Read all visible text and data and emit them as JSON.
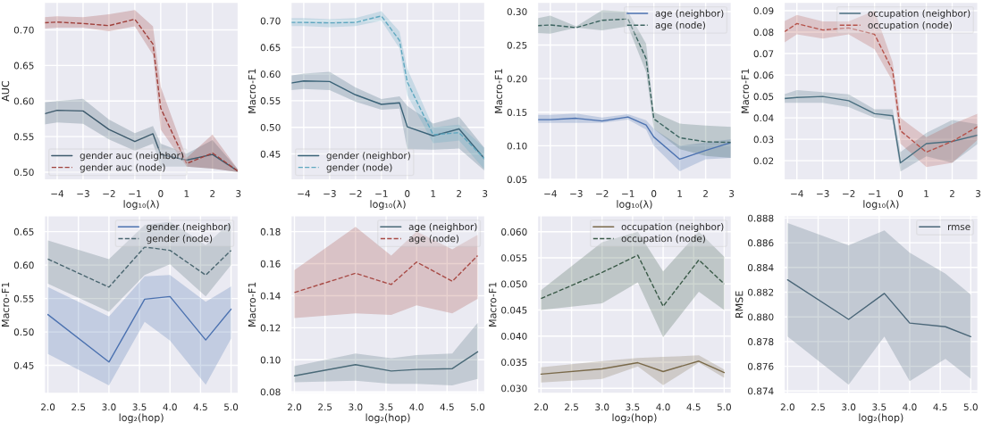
{
  "chart_data": [
    {
      "type": "line",
      "ylabel": "AUC",
      "xlabel": "log₁₀(λ)",
      "x": [
        -4.5,
        -4,
        -3,
        -2,
        -1,
        -0.3,
        0,
        1,
        2,
        3
      ],
      "xlim": [
        -4.5,
        3
      ],
      "xticks": [
        {
          "value": -4,
          "label": "−4"
        },
        {
          "value": -3,
          "label": "−3"
        },
        {
          "value": -2,
          "label": "−2"
        },
        {
          "value": -1,
          "label": "−1"
        },
        0,
        1,
        2,
        3
      ],
      "ylim": [
        0.489,
        0.739
      ],
      "yticks": [
        {
          "value": 0.5,
          "label": "0.50"
        },
        {
          "value": 0.55,
          "label": "0.55"
        },
        {
          "value": 0.6,
          "label": "0.60"
        },
        {
          "value": 0.65,
          "label": "0.65"
        },
        {
          "value": 0.7,
          "label": "0.70"
        }
      ],
      "grid": true,
      "legend": "bottom left",
      "series": [
        {
          "name": "gender auc (neighbor)",
          "color": "#3d5a6c",
          "line_style": "solid",
          "values": [
            0.582,
            0.587,
            0.586,
            0.56,
            0.543,
            0.554,
            0.525,
            0.517,
            0.525,
            0.501
          ],
          "lower": [
            0.567,
            0.57,
            0.568,
            0.546,
            0.53,
            0.54,
            0.508,
            0.508,
            0.505,
            0.5
          ],
          "upper": [
            0.598,
            0.6,
            0.603,
            0.574,
            0.555,
            0.565,
            0.54,
            0.526,
            0.545,
            0.503
          ]
        },
        {
          "name": "gender auc (node)",
          "color": "#a0413c",
          "line_style": "dashed",
          "values": [
            0.71,
            0.711,
            0.709,
            0.706,
            0.715,
            0.68,
            0.59,
            0.512,
            0.527,
            0.501
          ],
          "lower": [
            0.702,
            0.703,
            0.703,
            0.698,
            0.705,
            0.665,
            0.56,
            0.508,
            0.505,
            0.5
          ],
          "upper": [
            0.718,
            0.719,
            0.718,
            0.722,
            0.728,
            0.705,
            0.62,
            0.52,
            0.553,
            0.503
          ]
        }
      ]
    },
    {
      "type": "line",
      "ylabel": "Macro-F1",
      "xlabel": "log₁₀(λ)",
      "x": [
        -4.5,
        -4,
        -3,
        -2,
        -1,
        -0.3,
        0,
        1,
        2,
        3
      ],
      "xlim": [
        -4.5,
        3
      ],
      "xticks": [
        {
          "value": -4,
          "label": "−4"
        },
        {
          "value": -3,
          "label": "−3"
        },
        {
          "value": -2,
          "label": "−2"
        },
        {
          "value": -1,
          "label": "−1"
        },
        0,
        1,
        2,
        3
      ],
      "ylim": [
        0.401,
        0.735
      ],
      "yticks": [
        {
          "value": 0.45,
          "label": "0.45"
        },
        {
          "value": 0.5,
          "label": "0.50"
        },
        {
          "value": 0.55,
          "label": "0.55"
        },
        {
          "value": 0.6,
          "label": "0.60"
        },
        {
          "value": 0.65,
          "label": "0.65"
        },
        {
          "value": 0.7,
          "label": "0.70"
        }
      ],
      "grid": true,
      "legend": "bottom left",
      "series": [
        {
          "name": "gender (neighbor)",
          "color": "#3b6378",
          "line_style": "solid",
          "values": [
            0.583,
            0.587,
            0.586,
            0.561,
            0.543,
            0.546,
            0.501,
            0.484,
            0.497,
            0.44
          ],
          "lower": [
            0.57,
            0.572,
            0.57,
            0.548,
            0.533,
            0.535,
            0.459,
            0.458,
            0.46,
            0.418
          ],
          "upper": [
            0.597,
            0.601,
            0.604,
            0.575,
            0.553,
            0.558,
            0.54,
            0.507,
            0.52,
            0.46
          ]
        },
        {
          "name": "gender (node)",
          "color": "#5fa8c0",
          "line_style": "dashed",
          "values": [
            0.697,
            0.697,
            0.696,
            0.697,
            0.709,
            0.663,
            0.585,
            0.486,
            0.49,
            0.44
          ],
          "lower": [
            0.69,
            0.69,
            0.688,
            0.69,
            0.7,
            0.648,
            0.56,
            0.47,
            0.475,
            0.42
          ],
          "upper": [
            0.705,
            0.705,
            0.703,
            0.705,
            0.718,
            0.68,
            0.61,
            0.5,
            0.505,
            0.46
          ]
        }
      ]
    },
    {
      "type": "line",
      "ylabel": "Macro-F1",
      "xlabel": "log₁₀(λ)",
      "x": [
        -4.5,
        -4,
        -3,
        -2,
        -1,
        -0.3,
        0,
        1,
        2,
        3
      ],
      "xlim": [
        -4.5,
        3
      ],
      "xticks": [
        {
          "value": -4,
          "label": "−4"
        },
        {
          "value": -3,
          "label": "−3"
        },
        {
          "value": -2,
          "label": "−2"
        },
        {
          "value": -1,
          "label": "−1"
        },
        0,
        1,
        2,
        3
      ],
      "ylim": [
        0.049,
        0.314
      ],
      "yticks": [
        {
          "value": 0.05,
          "label": "0.05"
        },
        {
          "value": 0.1,
          "label": "0.10"
        },
        {
          "value": 0.15,
          "label": "0.15"
        },
        {
          "value": 0.2,
          "label": "0.20"
        },
        {
          "value": 0.25,
          "label": "0.25"
        },
        {
          "value": 0.3,
          "label": "0.30"
        }
      ],
      "grid": true,
      "legend": "top right",
      "series": [
        {
          "name": "age (neighbor)",
          "color": "#4c72b0",
          "line_style": "solid",
          "values": [
            0.139,
            0.139,
            0.141,
            0.137,
            0.143,
            0.131,
            0.113,
            0.08,
            0.093,
            0.105
          ],
          "lower": [
            0.134,
            0.134,
            0.134,
            0.134,
            0.139,
            0.124,
            0.1,
            0.062,
            0.08,
            0.082
          ],
          "upper": [
            0.146,
            0.146,
            0.148,
            0.142,
            0.147,
            0.138,
            0.125,
            0.1,
            0.105,
            0.11
          ]
        },
        {
          "name": "age (node)",
          "color": "#3c6460",
          "line_style": "dashed",
          "values": [
            0.279,
            0.28,
            0.276,
            0.287,
            0.289,
            0.23,
            0.14,
            0.112,
            0.106,
            0.105
          ],
          "lower": [
            0.268,
            0.267,
            0.276,
            0.272,
            0.278,
            0.21,
            0.125,
            0.095,
            0.085,
            0.082
          ],
          "upper": [
            0.29,
            0.294,
            0.278,
            0.302,
            0.3,
            0.252,
            0.15,
            0.133,
            0.13,
            0.128
          ]
        }
      ]
    },
    {
      "type": "line",
      "ylabel": "Macro-F1",
      "xlabel": "log₁₀(λ)",
      "x": [
        -4.5,
        -4,
        -3,
        -2,
        -1,
        -0.3,
        0,
        1,
        2,
        3
      ],
      "xlim": [
        -4.5,
        3
      ],
      "xticks": [
        {
          "value": -4,
          "label": "−4"
        },
        {
          "value": -3,
          "label": "−3"
        },
        {
          "value": -2,
          "label": "−2"
        },
        {
          "value": -1,
          "label": "−1"
        },
        0,
        1,
        2,
        3
      ],
      "ylim": [
        0.011,
        0.094
      ],
      "yticks": [
        0.02,
        0.03,
        0.04,
        0.05,
        0.06,
        0.07,
        0.08,
        0.09
      ],
      "grid": true,
      "legend": "top right",
      "series": [
        {
          "name": "occupation (neighbor)",
          "color": "#4a6f80",
          "line_style": "solid",
          "values": [
            0.049,
            0.0495,
            0.05,
            0.048,
            0.042,
            0.041,
            0.019,
            0.028,
            0.029,
            0.032
          ],
          "lower": [
            0.047,
            0.047,
            0.047,
            0.045,
            0.04,
            0.039,
            0.015,
            0.022,
            0.019,
            0.028
          ],
          "upper": [
            0.051,
            0.053,
            0.052,
            0.051,
            0.044,
            0.044,
            0.024,
            0.033,
            0.039,
            0.037
          ]
        },
        {
          "name": "occupation (node)",
          "color": "#b5524a",
          "line_style": "dashed",
          "values": [
            0.08,
            0.084,
            0.081,
            0.082,
            0.079,
            0.062,
            0.034,
            0.024,
            0.029,
            0.036
          ],
          "lower": [
            0.075,
            0.079,
            0.077,
            0.079,
            0.072,
            0.057,
            0.028,
            0.017,
            0.019,
            0.03
          ],
          "upper": [
            0.085,
            0.088,
            0.085,
            0.085,
            0.09,
            0.066,
            0.04,
            0.031,
            0.037,
            0.042
          ]
        }
      ]
    },
    {
      "type": "line",
      "ylabel": "Macro-F1",
      "xlabel": "log₂(hop)",
      "x": [
        2,
        3,
        3.585,
        4,
        4.585,
        5
      ],
      "xlim": [
        1.94,
        5.12
      ],
      "xticks": [
        {
          "value": 2,
          "label": "2.0"
        },
        2.5,
        {
          "value": 3,
          "label": "3.0"
        },
        3.5,
        {
          "value": 4,
          "label": "4.0"
        },
        4.5,
        {
          "value": 5,
          "label": "5.0"
        }
      ],
      "ylim": [
        0.408,
        0.674
      ],
      "yticks": [
        0.45,
        {
          "value": 0.5,
          "label": "0.50"
        },
        0.55,
        {
          "value": 0.6,
          "label": "0.60"
        },
        0.65
      ],
      "grid": true,
      "legend": "top right",
      "series": [
        {
          "name": "gender (neighbor)",
          "color": "#4c72b0",
          "line_style": "solid",
          "values": [
            0.526,
            0.455,
            0.549,
            0.553,
            0.488,
            0.534
          ],
          "lower": [
            0.467,
            0.42,
            0.515,
            0.487,
            0.421,
            0.49
          ],
          "upper": [
            0.567,
            0.523,
            0.583,
            0.585,
            0.545,
            0.568
          ]
        },
        {
          "name": "gender (node)",
          "color": "#4a6670",
          "line_style": "dashed",
          "values": [
            0.609,
            0.567,
            0.627,
            0.622,
            0.585,
            0.622
          ],
          "lower": [
            0.572,
            0.53,
            0.585,
            0.601,
            0.553,
            0.6
          ],
          "upper": [
            0.637,
            0.609,
            0.66,
            0.665,
            0.63,
            0.665
          ]
        }
      ]
    },
    {
      "type": "line",
      "ylabel": "Macro-F1",
      "xlabel": "log₂(hop)",
      "x": [
        2,
        3,
        3.585,
        4,
        4.585,
        5
      ],
      "xlim": [
        1.94,
        5.12
      ],
      "xticks": [
        {
          "value": 2,
          "label": "2.0"
        },
        2.5,
        {
          "value": 3,
          "label": "3.0"
        },
        3.5,
        {
          "value": 4,
          "label": "4.0"
        },
        4.5,
        {
          "value": 5,
          "label": "5.0"
        }
      ],
      "ylim": [
        0.079,
        0.19
      ],
      "yticks": [
        {
          "value": 0.08,
          "label": "0.08"
        },
        {
          "value": 0.1,
          "label": "0.10"
        },
        0.12,
        0.14,
        0.16,
        0.18
      ],
      "grid": true,
      "legend": "top right",
      "series": [
        {
          "name": "age (neighbor)",
          "color": "#4a6a78",
          "line_style": "solid",
          "values": [
            0.09,
            0.097,
            0.093,
            0.094,
            0.0945,
            0.105
          ],
          "lower": [
            0.086,
            0.087,
            0.085,
            0.085,
            0.084,
            0.088
          ],
          "upper": [
            0.096,
            0.104,
            0.101,
            0.103,
            0.104,
            0.123
          ]
        },
        {
          "name": "age (node)",
          "color": "#a84a45",
          "line_style": "dashed",
          "values": [
            0.142,
            0.154,
            0.147,
            0.161,
            0.149,
            0.165
          ],
          "lower": [
            0.126,
            0.129,
            0.128,
            0.134,
            0.129,
            0.138
          ],
          "upper": [
            0.156,
            0.183,
            0.165,
            0.18,
            0.169,
            0.178
          ]
        }
      ]
    },
    {
      "type": "line",
      "ylabel": "Macro-F1",
      "xlabel": "log₂(hop)",
      "x": [
        2,
        3,
        3.585,
        4,
        4.585,
        5
      ],
      "xlim": [
        1.94,
        5.12
      ],
      "xticks": [
        {
          "value": 2,
          "label": "2.0"
        },
        2.5,
        {
          "value": 3,
          "label": "3.0"
        },
        3.5,
        {
          "value": 4,
          "label": "4.0"
        },
        4.5,
        {
          "value": 5,
          "label": "5.0"
        }
      ],
      "ylim": [
        0.029,
        0.0631
      ],
      "yticks": [
        {
          "value": 0.03,
          "label": "0.030"
        },
        0.035,
        {
          "value": 0.04,
          "label": "0.040"
        },
        0.045,
        {
          "value": 0.05,
          "label": "0.050"
        },
        0.055,
        {
          "value": 0.06,
          "label": "0.060"
        }
      ],
      "grid": true,
      "legend": "top right",
      "series": [
        {
          "name": "occupation (neighbor)",
          "color": "#7a6a4a",
          "line_style": "solid",
          "values": [
            0.0327,
            0.0337,
            0.0349,
            0.0332,
            0.0352,
            0.033
          ],
          "lower": [
            0.0311,
            0.0318,
            0.0342,
            0.0306,
            0.0349,
            0.032
          ],
          "upper": [
            0.034,
            0.0352,
            0.0358,
            0.036,
            0.0363,
            0.0336
          ]
        },
        {
          "name": "occupation (node)",
          "color": "#3a5a48",
          "line_style": "dashed",
          "values": [
            0.0472,
            0.0522,
            0.0555,
            0.0457,
            0.0546,
            0.05
          ],
          "lower": [
            0.045,
            0.0463,
            0.0503,
            0.0398,
            0.0485,
            0.045
          ],
          "upper": [
            0.0488,
            0.058,
            0.06,
            0.0524,
            0.06,
            0.0552
          ]
        }
      ]
    },
    {
      "type": "line",
      "ylabel": "RMSE",
      "xlabel": "log₂(hop)",
      "x": [
        2,
        3,
        3.585,
        4,
        4.585,
        5
      ],
      "xlim": [
        1.94,
        5.12
      ],
      "xticks": [
        {
          "value": 2,
          "label": "2.0"
        },
        2.5,
        {
          "value": 3,
          "label": "3.0"
        },
        3.5,
        {
          "value": 4,
          "label": "4.0"
        },
        4.5,
        {
          "value": 5,
          "label": "5.0"
        }
      ],
      "ylim": [
        0.8738,
        0.8882
      ],
      "yticks": [
        {
          "value": 0.874,
          "label": "0.874"
        },
        {
          "value": 0.876,
          "label": "0.876"
        },
        {
          "value": 0.878,
          "label": "0.878"
        },
        {
          "value": 0.88,
          "label": "0.880"
        },
        {
          "value": 0.882,
          "label": "0.882"
        },
        {
          "value": 0.884,
          "label": "0.884"
        },
        {
          "value": 0.886,
          "label": "0.886"
        },
        {
          "value": 0.888,
          "label": "0.888"
        }
      ],
      "grid": true,
      "legend": "top right",
      "series": [
        {
          "name": "rmse",
          "color": "#4a6678",
          "line_style": "solid",
          "values": [
            0.883,
            0.8798,
            0.8819,
            0.8795,
            0.8792,
            0.8784
          ],
          "lower": [
            0.8784,
            0.8745,
            0.8784,
            0.8748,
            0.8766,
            0.875
          ],
          "upper": [
            0.8876,
            0.8858,
            0.887,
            0.8852,
            0.8835,
            0.8818
          ]
        }
      ]
    }
  ]
}
